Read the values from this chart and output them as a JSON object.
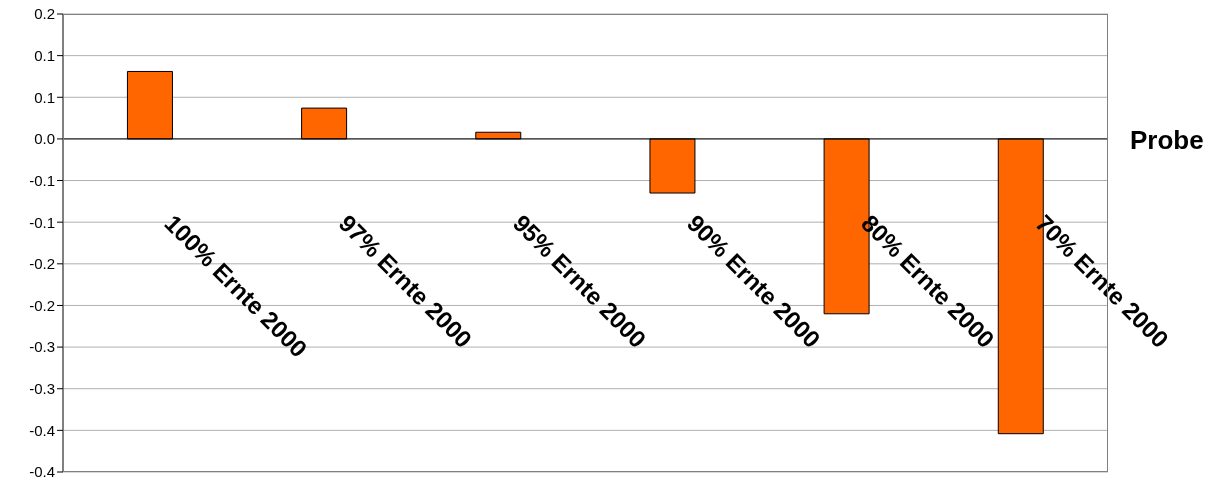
{
  "chart_data": {
    "type": "bar",
    "xlabel": "Probe",
    "categories": [
      "100% Ernte 2000",
      "97% Ernte 2000",
      "95% Ernte 2000",
      "90% Ernte 2000",
      "80% Ernte 2000",
      "70% Ernte 2000"
    ],
    "values": [
      0.081,
      0.037,
      0.008,
      -0.065,
      -0.21,
      -0.354
    ],
    "color": "#ff6600",
    "ylim": [
      -0.4,
      0.15
    ],
    "yticks": [
      {
        "value": 0.15,
        "label": "0.2"
      },
      {
        "value": 0.1,
        "label": "0.1"
      },
      {
        "value": 0.05,
        "label": "0.1"
      },
      {
        "value": 0,
        "label": "0.0"
      },
      {
        "value": -0.05,
        "label": "-0.1"
      },
      {
        "value": -0.1,
        "label": "-0.1"
      },
      {
        "value": -0.15,
        "label": "-0.2"
      },
      {
        "value": -0.2,
        "label": "-0.2"
      },
      {
        "value": -0.25,
        "label": "-0.3"
      },
      {
        "value": -0.3,
        "label": "-0.3"
      },
      {
        "value": -0.35,
        "label": "-0.4"
      },
      {
        "value": -0.4,
        "label": "-0.4"
      }
    ],
    "grid": "y",
    "legend": false
  }
}
